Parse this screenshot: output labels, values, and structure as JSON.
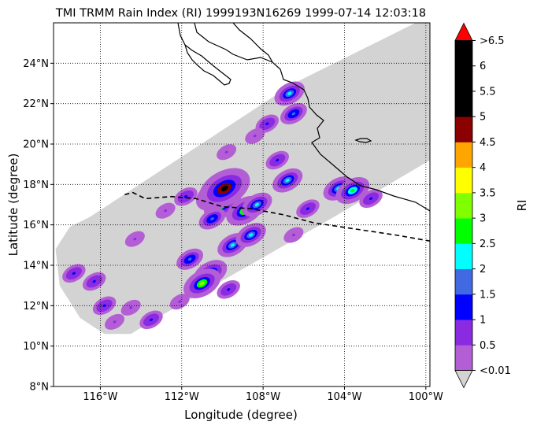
{
  "title": "TMI TRMM Rain Index (RI) 1999193N16269 1999-07-14 12:03:18",
  "xlabel": "Longitude (degree)",
  "ylabel": "Latitude (degree)",
  "colorbar": {
    "label": "RI",
    "tick_labels": [
      "<0.01",
      "0.5",
      "1",
      "1.5",
      "2",
      "2.5",
      "3",
      "3.5",
      "4",
      "4.5",
      "5",
      "5.5",
      "6",
      ">6.5"
    ],
    "colors": [
      "#b45ed6",
      "#8a2be2",
      "#0000ff",
      "#4169e1",
      "#00ffff",
      "#00ff00",
      "#7fff00",
      "#ffff00",
      "#ffa500",
      "#8b0000",
      "#000000",
      "#000000",
      "#000000"
    ],
    "under_color": "#d3d3d3",
    "over_color": "#ff0000"
  },
  "chart_data": {
    "type": "heatmap",
    "title": "TMI TRMM Rain Index (RI) 1999193N16269 1999-07-14 12:03:18",
    "xlabel": "Longitude (degree)",
    "ylabel": "Latitude (degree)",
    "xlim": [
      -118.3,
      -99.8
    ],
    "ylim": [
      8,
      26
    ],
    "x_ticks": [
      -116,
      -112,
      -108,
      -104,
      -100
    ],
    "x_tick_labels": [
      "116°W",
      "112°W",
      "108°W",
      "104°W",
      "100°W"
    ],
    "y_ticks": [
      8,
      10,
      12,
      14,
      16,
      18,
      20,
      22,
      24
    ],
    "y_tick_labels": [
      "8°N",
      "10°N",
      "12°N",
      "14°N",
      "16°N",
      "18°N",
      "20°N",
      "22°N",
      "24°N"
    ],
    "grid": true,
    "swath_color": "#d3d3d3",
    "swath_outline": [
      [
        -116.5,
        16.4
      ],
      [
        -106.5,
        23
      ],
      [
        -100.5,
        26
      ],
      [
        -99.8,
        26
      ],
      [
        -99.8,
        19.2
      ],
      [
        -104.5,
        16.4
      ],
      [
        -113.2,
        11.4
      ],
      [
        -114.5,
        10.6
      ],
      [
        -115.8,
        10.6
      ],
      [
        -117,
        11.4
      ],
      [
        -118,
        13
      ],
      [
        -118.2,
        14.8
      ],
      [
        -117.5,
        15.9
      ]
    ],
    "track": [
      [
        -114.8,
        17.5
      ],
      [
        -114.4,
        17.6
      ],
      [
        -113.8,
        17.3
      ],
      [
        -112.5,
        17.4
      ],
      [
        -111.3,
        17.3
      ],
      [
        -110,
        16.9
      ],
      [
        -108.6,
        16.8
      ],
      [
        -107,
        16.5
      ],
      [
        -105.5,
        16.1
      ],
      [
        -103.5,
        15.8
      ],
      [
        -101.5,
        15.5
      ],
      [
        -99.8,
        15.2
      ]
    ],
    "rain_cells": [
      {
        "lon": -110.0,
        "lat": 17.0,
        "ri": 3
      },
      {
        "lon": -110.3,
        "lat": 17.5,
        "ri": 3.5
      },
      {
        "lon": -109.9,
        "lat": 17.8,
        "ri": 5
      },
      {
        "lon": -108.9,
        "lat": 16.7,
        "ri": 3
      },
      {
        "lon": -110.5,
        "lat": 16.3,
        "ri": 1.5
      },
      {
        "lon": -109.5,
        "lat": 15.0,
        "ri": 2
      },
      {
        "lon": -108.6,
        "lat": 15.5,
        "ri": 2
      },
      {
        "lon": -110.6,
        "lat": 13.6,
        "ri": 2.5
      },
      {
        "lon": -111.0,
        "lat": 13.1,
        "ri": 3
      },
      {
        "lon": -104.3,
        "lat": 17.8,
        "ri": 2
      },
      {
        "lon": -103.6,
        "lat": 17.7,
        "ri": 2.5
      },
      {
        "lon": -106.7,
        "lat": 22.5,
        "ri": 2
      },
      {
        "lon": -106.5,
        "lat": 21.5,
        "ri": 1.5
      },
      {
        "lon": -107.8,
        "lat": 21.0,
        "ri": 1
      },
      {
        "lon": -106.8,
        "lat": 18.2,
        "ri": 2
      },
      {
        "lon": -107.3,
        "lat": 19.2,
        "ri": 1
      },
      {
        "lon": -109.8,
        "lat": 19.6,
        "ri": 0.5
      },
      {
        "lon": -108.3,
        "lat": 17.0,
        "ri": 2
      },
      {
        "lon": -111.6,
        "lat": 14.3,
        "ri": 1.5
      },
      {
        "lon": -109.7,
        "lat": 12.8,
        "ri": 1
      },
      {
        "lon": -116.3,
        "lat": 13.2,
        "ri": 1
      },
      {
        "lon": -117.3,
        "lat": 13.6,
        "ri": 1
      },
      {
        "lon": -115.8,
        "lat": 12.0,
        "ri": 1
      },
      {
        "lon": -114.5,
        "lat": 11.9,
        "ri": 0.5
      },
      {
        "lon": -113.5,
        "lat": 11.3,
        "ri": 1
      },
      {
        "lon": -115.3,
        "lat": 11.2,
        "ri": 0.5
      },
      {
        "lon": -112.1,
        "lat": 12.2,
        "ri": 0.5
      },
      {
        "lon": -112.8,
        "lat": 16.7,
        "ri": 0.5
      },
      {
        "lon": -111.8,
        "lat": 17.4,
        "ri": 1
      },
      {
        "lon": -105.8,
        "lat": 16.8,
        "ri": 1
      },
      {
        "lon": -106.5,
        "lat": 15.5,
        "ri": 0.5
      },
      {
        "lon": -114.3,
        "lat": 15.3,
        "ri": 0.5
      },
      {
        "lon": -108.4,
        "lat": 20.4,
        "ri": 0.5
      },
      {
        "lon": -102.7,
        "lat": 17.3,
        "ri": 1
      }
    ]
  }
}
